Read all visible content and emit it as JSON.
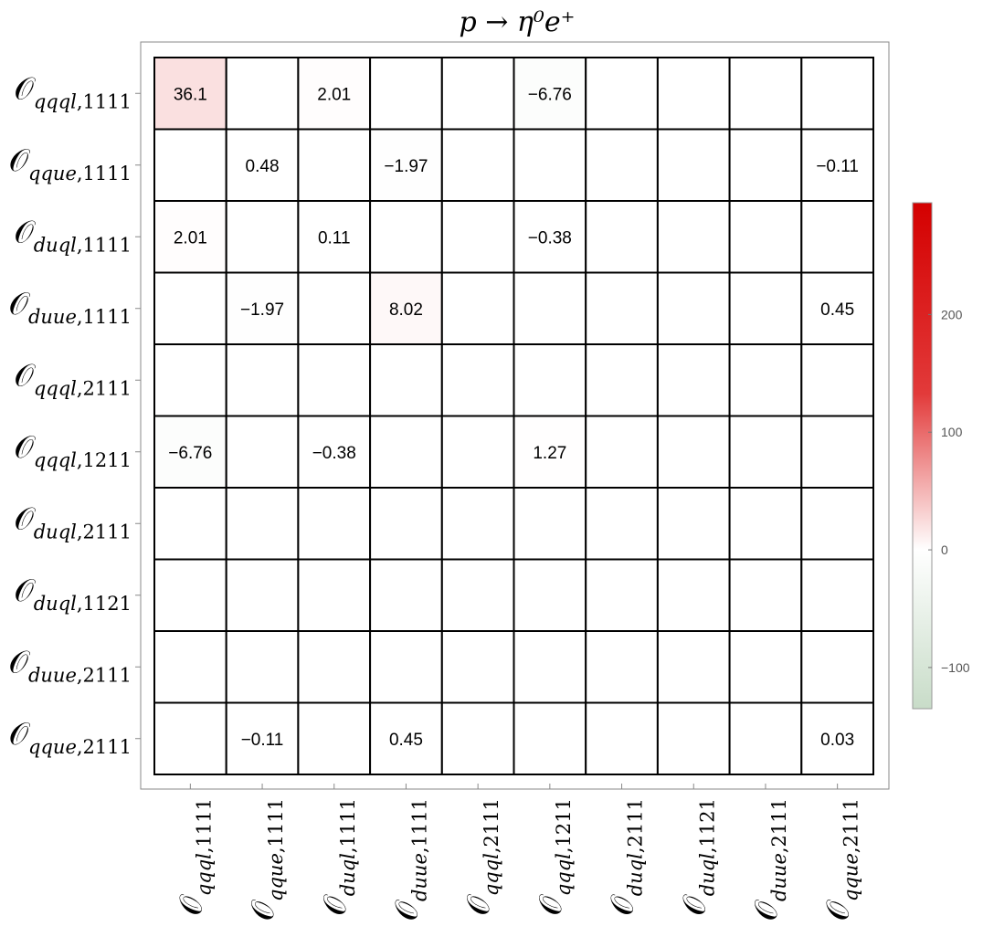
{
  "chart_data": {
    "type": "heatmap",
    "title": "p → η⁰e⁺",
    "row_labels": [
      {
        "main": "𝒪",
        "flavor": "qqql",
        "index": "1111"
      },
      {
        "main": "𝒪",
        "flavor": "qque",
        "index": "1111"
      },
      {
        "main": "𝒪",
        "flavor": "duql",
        "index": "1111"
      },
      {
        "main": "𝒪",
        "flavor": "duue",
        "index": "1111"
      },
      {
        "main": "𝒪",
        "flavor": "qqql",
        "index": "2111"
      },
      {
        "main": "𝒪",
        "flavor": "qqql",
        "index": "1211"
      },
      {
        "main": "𝒪",
        "flavor": "duql",
        "index": "2111"
      },
      {
        "main": "𝒪",
        "flavor": "duql",
        "index": "1121"
      },
      {
        "main": "𝒪",
        "flavor": "duue",
        "index": "2111"
      },
      {
        "main": "𝒪",
        "flavor": "qque",
        "index": "2111"
      }
    ],
    "col_labels": [
      {
        "main": "𝒪",
        "flavor": "qqql",
        "index": "1111"
      },
      {
        "main": "𝒪",
        "flavor": "qque",
        "index": "1111"
      },
      {
        "main": "𝒪",
        "flavor": "duql",
        "index": "1111"
      },
      {
        "main": "𝒪",
        "flavor": "duue",
        "index": "1111"
      },
      {
        "main": "𝒪",
        "flavor": "qqql",
        "index": "2111"
      },
      {
        "main": "𝒪",
        "flavor": "qqql",
        "index": "1211"
      },
      {
        "main": "𝒪",
        "flavor": "duql",
        "index": "2111"
      },
      {
        "main": "𝒪",
        "flavor": "duql",
        "index": "1121"
      },
      {
        "main": "𝒪",
        "flavor": "duue",
        "index": "2111"
      },
      {
        "main": "𝒪",
        "flavor": "qque",
        "index": "2111"
      }
    ],
    "values": [
      [
        36.1,
        null,
        2.01,
        null,
        null,
        -6.76,
        null,
        null,
        null,
        null
      ],
      [
        null,
        0.48,
        null,
        -1.97,
        null,
        null,
        null,
        null,
        null,
        -0.11
      ],
      [
        2.01,
        null,
        0.11,
        null,
        null,
        -0.38,
        null,
        null,
        null,
        null
      ],
      [
        null,
        -1.97,
        null,
        8.02,
        null,
        null,
        null,
        null,
        null,
        0.45
      ],
      [
        null,
        null,
        null,
        null,
        null,
        null,
        null,
        null,
        null,
        null
      ],
      [
        -6.76,
        null,
        -0.38,
        null,
        null,
        1.27,
        null,
        null,
        null,
        null
      ],
      [
        null,
        null,
        null,
        null,
        null,
        null,
        null,
        null,
        null,
        null
      ],
      [
        null,
        null,
        null,
        null,
        null,
        null,
        null,
        null,
        null,
        null
      ],
      [
        null,
        null,
        null,
        null,
        null,
        null,
        null,
        null,
        null,
        null
      ],
      [
        null,
        -0.11,
        null,
        0.45,
        null,
        null,
        null,
        null,
        null,
        0.03
      ]
    ],
    "value_labels": [
      [
        "36.1",
        "",
        "2.01",
        "",
        "",
        "−6.76",
        "",
        "",
        "",
        ""
      ],
      [
        "",
        "0.48",
        "",
        "−1.97",
        "",
        "",
        "",
        "",
        "",
        "−0.11"
      ],
      [
        "2.01",
        "",
        "0.11",
        "",
        "",
        "−0.38",
        "",
        "",
        "",
        ""
      ],
      [
        "",
        "−1.97",
        "",
        "8.02",
        "",
        "",
        "",
        "",
        "",
        "0.45"
      ],
      [
        "",
        "",
        "",
        "",
        "",
        "",
        "",
        "",
        "",
        ""
      ],
      [
        "−6.76",
        "",
        "−0.38",
        "",
        "",
        "1.27",
        "",
        "",
        "",
        ""
      ],
      [
        "",
        "",
        "",
        "",
        "",
        "",
        "",
        "",
        "",
        ""
      ],
      [
        "",
        "",
        "",
        "",
        "",
        "",
        "",
        "",
        "",
        ""
      ],
      [
        "",
        "",
        "",
        "",
        "",
        "",
        "",
        "",
        "",
        ""
      ],
      [
        "",
        "−0.11",
        "",
        "0.45",
        "",
        "",
        "",
        "",
        "",
        "0.03"
      ]
    ],
    "colorbar": {
      "range": [
        -135,
        295
      ],
      "ticks": [
        200,
        100,
        0,
        -100
      ],
      "tick_labels": [
        "200",
        "100",
        "0",
        "−100"
      ],
      "positive_color": "#d40000",
      "zero_color": "#ffffff",
      "negative_color": "#c8dcc8"
    },
    "grid": true
  }
}
